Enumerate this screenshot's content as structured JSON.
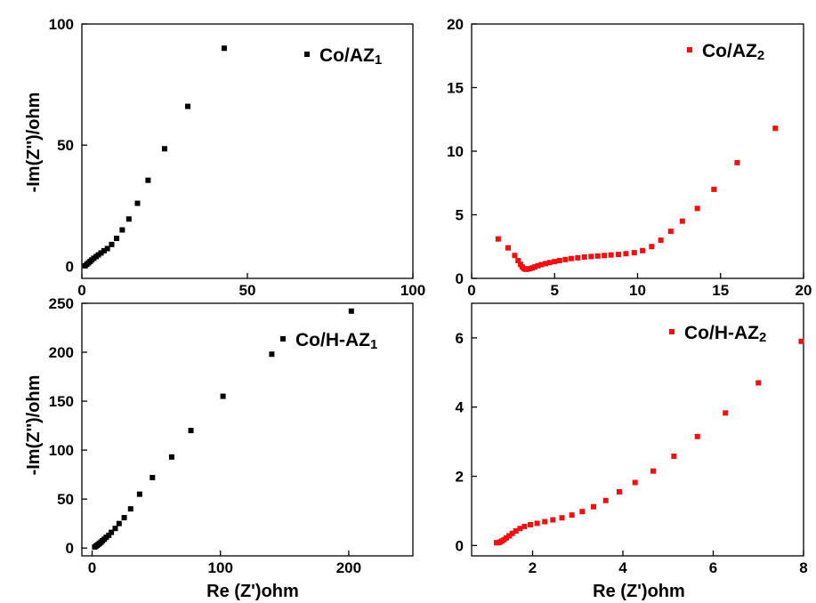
{
  "figure": {
    "xlabel": "Re (Z')ohm",
    "ylabel": "-Im(Z'')/ohm"
  },
  "chart_data": [
    {
      "type": "scatter",
      "xlim": [
        0,
        100
      ],
      "ylim": [
        -5,
        100
      ],
      "xticks": [
        0,
        50,
        100
      ],
      "yticks": [
        0,
        50,
        100
      ],
      "grid": false,
      "legend_position": "top-right",
      "color": "#000000",
      "series": [
        {
          "name": "Co/AZ1",
          "x": [
            1.0,
            1.5,
            2.0,
            2.5,
            3.0,
            3.6,
            4.3,
            5.0,
            5.8,
            6.7,
            7.7,
            9.0,
            10.5,
            12.2,
            14.2,
            16.8,
            20.0,
            25.0,
            32.0,
            43.0
          ],
          "y": [
            0.2,
            0.8,
            1.4,
            2.0,
            2.6,
            3.3,
            4.0,
            4.7,
            5.5,
            6.4,
            7.3,
            9.0,
            11.5,
            15.0,
            19.5,
            26.0,
            35.5,
            48.5,
            66.0,
            90.0
          ]
        }
      ]
    },
    {
      "type": "scatter",
      "xlim": [
        0,
        20
      ],
      "ylim": [
        0,
        20
      ],
      "xticks": [
        0,
        5,
        10,
        15,
        20
      ],
      "yticks": [
        0,
        5,
        10,
        15,
        20
      ],
      "grid": false,
      "legend_position": "top-right",
      "color": "#ee1111",
      "series": [
        {
          "name": "Co/AZ2",
          "x": [
            1.6,
            2.2,
            2.6,
            2.8,
            2.95,
            3.05,
            3.15,
            3.25,
            3.35,
            3.5,
            3.65,
            3.8,
            4.0,
            4.2,
            4.45,
            4.7,
            5.0,
            5.3,
            5.65,
            6.0,
            6.4,
            6.8,
            7.2,
            7.6,
            8.0,
            8.4,
            8.85,
            9.3,
            9.8,
            10.3,
            10.85,
            11.4,
            12.0,
            12.7,
            13.6,
            14.6,
            16.0,
            18.3
          ],
          "y": [
            3.1,
            2.4,
            1.8,
            1.4,
            1.1,
            0.9,
            0.78,
            0.72,
            0.72,
            0.76,
            0.82,
            0.9,
            1.0,
            1.08,
            1.16,
            1.24,
            1.32,
            1.4,
            1.48,
            1.56,
            1.62,
            1.68,
            1.72,
            1.76,
            1.8,
            1.84,
            1.88,
            1.94,
            2.02,
            2.18,
            2.5,
            3.0,
            3.7,
            4.5,
            5.5,
            7.0,
            9.1,
            11.8
          ]
        }
      ]
    },
    {
      "type": "scatter",
      "xlim": [
        -8,
        250
      ],
      "ylim": [
        -8,
        250
      ],
      "xticks": [
        0,
        100,
        200
      ],
      "yticks": [
        0,
        50,
        100,
        150,
        200,
        250
      ],
      "grid": false,
      "legend_position": "top-right",
      "color": "#000000",
      "series": [
        {
          "name": "Co/H-AZ1",
          "x": [
            2,
            3,
            4,
            5,
            6,
            7,
            8,
            9.5,
            11,
            13,
            15,
            18,
            21,
            25,
            30,
            37,
            47,
            62,
            77,
            102,
            140,
            202
          ],
          "y": [
            1,
            2,
            3,
            4,
            5,
            6,
            7.5,
            9,
            11,
            13,
            16,
            20,
            25,
            31,
            40,
            55,
            72,
            93,
            120,
            155,
            198,
            242
          ]
        }
      ]
    },
    {
      "type": "scatter",
      "xlim": [
        0.65,
        8
      ],
      "ylim": [
        -0.3,
        7
      ],
      "xticks": [
        2,
        4,
        6,
        8
      ],
      "yticks": [
        0,
        2,
        4,
        6
      ],
      "grid": false,
      "legend_position": "top-right",
      "color": "#ee1111",
      "series": [
        {
          "name": "Co/H-AZ2",
          "x": [
            1.2,
            1.24,
            1.28,
            1.32,
            1.37,
            1.42,
            1.48,
            1.55,
            1.63,
            1.72,
            1.82,
            1.95,
            2.1,
            2.27,
            2.45,
            2.65,
            2.87,
            3.1,
            3.35,
            3.62,
            3.92,
            4.27,
            4.67,
            5.13,
            5.65,
            6.27,
            7.0,
            7.95
          ],
          "y": [
            0.08,
            0.08,
            0.1,
            0.13,
            0.17,
            0.22,
            0.28,
            0.35,
            0.42,
            0.49,
            0.55,
            0.6,
            0.64,
            0.69,
            0.74,
            0.8,
            0.88,
            0.98,
            1.12,
            1.3,
            1.55,
            1.82,
            2.15,
            2.58,
            3.15,
            3.83,
            4.7,
            5.9
          ]
        }
      ]
    }
  ]
}
